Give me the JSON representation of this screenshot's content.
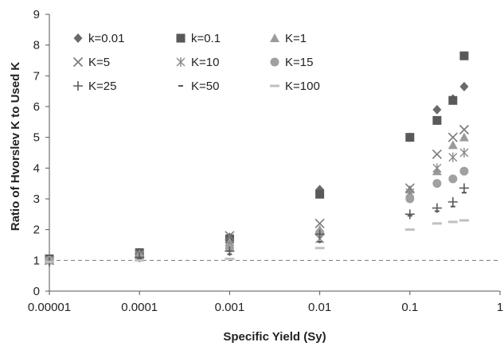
{
  "chart_data": {
    "type": "scatter",
    "xscale": "log",
    "xlim": [
      1e-05,
      1
    ],
    "ylim": [
      0,
      9
    ],
    "xticks": [
      "0.00001",
      "0.0001",
      "0.001",
      "0.01",
      "0.1",
      "1"
    ],
    "yticks": [
      "0",
      "1",
      "2",
      "3",
      "4",
      "5",
      "6",
      "7",
      "8",
      "9"
    ],
    "xlabel": "Specific Yield (Sy)",
    "ylabel": "Ratio of  Hvorslev K to Used K",
    "grid": false,
    "legend": "top-left",
    "reference_line": {
      "y": 1,
      "style": "dashed"
    },
    "series": [
      {
        "name": "k=0.01",
        "marker": "diamond",
        "color": "#6a6a6a",
        "points": [
          [
            1e-05,
            1.0
          ],
          [
            0.0001,
            1.25
          ],
          [
            0.001,
            1.75
          ],
          [
            0.01,
            3.3
          ],
          [
            0.1,
            5.0
          ],
          [
            0.2,
            5.9
          ],
          [
            0.3,
            6.25
          ],
          [
            0.4,
            6.65
          ]
        ]
      },
      {
        "name": "k=0.1",
        "marker": "square",
        "color": "#595959",
        "points": [
          [
            1e-05,
            1.05
          ],
          [
            0.0001,
            1.25
          ],
          [
            0.001,
            1.7
          ],
          [
            0.01,
            3.15
          ],
          [
            0.1,
            5.0
          ],
          [
            0.2,
            5.55
          ],
          [
            0.3,
            6.2
          ],
          [
            0.4,
            7.65
          ]
        ]
      },
      {
        "name": "K=1",
        "marker": "triangle",
        "color": "#9b9b9b",
        "points": [
          [
            1e-05,
            1.0
          ],
          [
            0.0001,
            1.2
          ],
          [
            0.001,
            1.6
          ],
          [
            0.01,
            2.0
          ],
          [
            0.1,
            3.3
          ],
          [
            0.2,
            3.9
          ],
          [
            0.3,
            4.75
          ],
          [
            0.4,
            5.0
          ]
        ]
      },
      {
        "name": "K=5",
        "marker": "x",
        "color": "#7a7a7a",
        "points": [
          [
            1e-05,
            1.0
          ],
          [
            0.0001,
            1.2
          ],
          [
            0.001,
            1.8
          ],
          [
            0.01,
            2.2
          ],
          [
            0.1,
            3.35
          ],
          [
            0.2,
            4.45
          ],
          [
            0.3,
            5.0
          ],
          [
            0.4,
            5.25
          ]
        ]
      },
      {
        "name": "K=10",
        "marker": "asterisk",
        "color": "#8a8a8a",
        "points": [
          [
            1e-05,
            1.0
          ],
          [
            0.0001,
            1.15
          ],
          [
            0.001,
            1.5
          ],
          [
            0.01,
            1.7
          ],
          [
            0.1,
            3.2
          ],
          [
            0.2,
            4.0
          ],
          [
            0.3,
            4.35
          ],
          [
            0.4,
            4.5
          ]
        ]
      },
      {
        "name": "K=15",
        "marker": "circle",
        "color": "#a0a0a0",
        "points": [
          [
            1e-05,
            1.0
          ],
          [
            0.0001,
            1.1
          ],
          [
            0.001,
            1.4
          ],
          [
            0.01,
            1.9
          ],
          [
            0.1,
            3.0
          ],
          [
            0.2,
            3.5
          ],
          [
            0.3,
            3.65
          ],
          [
            0.4,
            3.9
          ]
        ]
      },
      {
        "name": "K=25",
        "marker": "plus",
        "color": "#5a5a5a",
        "points": [
          [
            1e-05,
            0.95
          ],
          [
            0.0001,
            1.1
          ],
          [
            0.001,
            1.3
          ],
          [
            0.01,
            1.85
          ],
          [
            0.1,
            2.5
          ],
          [
            0.2,
            2.7
          ],
          [
            0.3,
            2.9
          ],
          [
            0.4,
            3.35
          ]
        ]
      },
      {
        "name": "K=50",
        "marker": "dash-dark",
        "color": "#555555",
        "points": [
          [
            1e-05,
            0.95
          ],
          [
            0.0001,
            1.05
          ],
          [
            0.001,
            1.2
          ],
          [
            0.01,
            1.6
          ],
          [
            0.1,
            2.45
          ],
          [
            0.2,
            2.6
          ],
          [
            0.3,
            2.75
          ],
          [
            0.4,
            3.2
          ]
        ]
      },
      {
        "name": "K=100",
        "marker": "dash-light",
        "color": "#c0c0c0",
        "points": [
          [
            1e-05,
            0.95
          ],
          [
            0.0001,
            1.0
          ],
          [
            0.001,
            1.05
          ],
          [
            0.01,
            1.4
          ],
          [
            0.1,
            2.0
          ],
          [
            0.2,
            2.2
          ],
          [
            0.3,
            2.25
          ],
          [
            0.4,
            2.3
          ]
        ]
      }
    ]
  }
}
